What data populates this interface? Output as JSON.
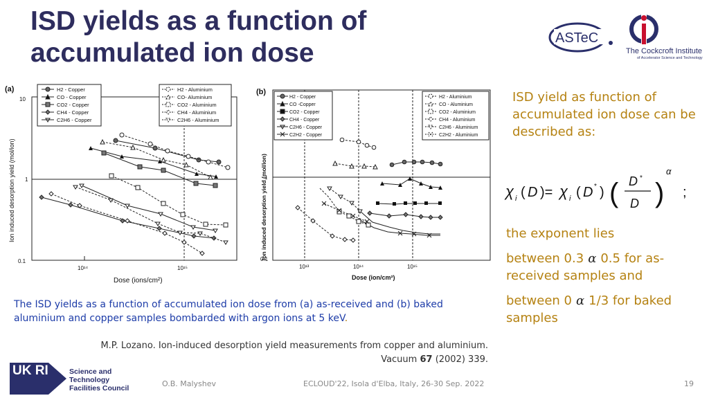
{
  "slide": {
    "title": "ISD yields as a function of accumulated ion dose"
  },
  "logos": {
    "astec": "ASTeC",
    "cockcroft_name": "The Cockcroft Institute",
    "cockcroft_sub": "of Accelerator Science and Technology",
    "ukri": "UK RI",
    "stfc": "Science and Technology Facilities Council"
  },
  "figure_a": {
    "panel_label": "(a)",
    "ylabel": "Ion induced desorption yield (mol/ion)",
    "xlabel": "Dose (ions/cm²)",
    "y_ticks": [
      "10",
      "1",
      "0.1"
    ],
    "x_ticks": [
      "10¹⁴",
      "10¹⁵"
    ],
    "legend_left": [
      "H2 - Copper",
      "CO - Copper",
      "CO2 - Copper",
      "CH4 - Copper",
      "C2H6 - Copper"
    ],
    "legend_right": [
      "H2 - Aluminium",
      "CO- Aluminium",
      "CO2 - Aluminium",
      "CH4 - Aluminium",
      "C2H6 - Aluminium"
    ]
  },
  "figure_b": {
    "panel_label": "(b)",
    "ylabel": "Ion induced desorption yield (mol/ion)",
    "xlabel": "Dose (ion/cm²)",
    "y_ticks": [
      "1",
      "0.1"
    ],
    "x_ticks": [
      "10¹³",
      "10¹⁴",
      "10¹⁵"
    ],
    "legend_left": [
      "H2 - Copper",
      "CO -Copper",
      "CO2 - Copper",
      "CH4 - Copper",
      "C2H6 - Copper",
      "C2H2 - Copper"
    ],
    "legend_right": [
      "H2 - Aluminium",
      "CO - Aluminium",
      "CO2 - Aluminium",
      "CH4 - Aluminium",
      "C2H6 - Aluminium",
      "C2H2 - Aluminium"
    ]
  },
  "caption": "The ISD yields as a function of accumulated ion dose from (a) as-received and (b) baked aluminium and copper samples bombarded with argon ions at 5 keV",
  "caption_end": ".",
  "reference": {
    "line1": "M.P. Lozano. Ion-induced desorption yield measurements from copper and aluminium.",
    "journal": "Vacuum ",
    "volume": "67",
    "rest": " (2002) 339."
  },
  "right_panel": {
    "intro": "ISD yield as function of accumulated ion dose can be described as:",
    "exponent_text": "the exponent   lies",
    "range1_a": "between 0.3",
    "range1_b": "0.5 for as-received samples and",
    "range2_a": "between 0",
    "range2_b": "1/3 for baked samples",
    "alpha_symbol": "α"
  },
  "footer": {
    "author": "O.B. Malyshev",
    "conference": "ECLOUD'22, Isola d'Elba, Italy, 26-30 Sep. 2022",
    "page": "19"
  }
}
